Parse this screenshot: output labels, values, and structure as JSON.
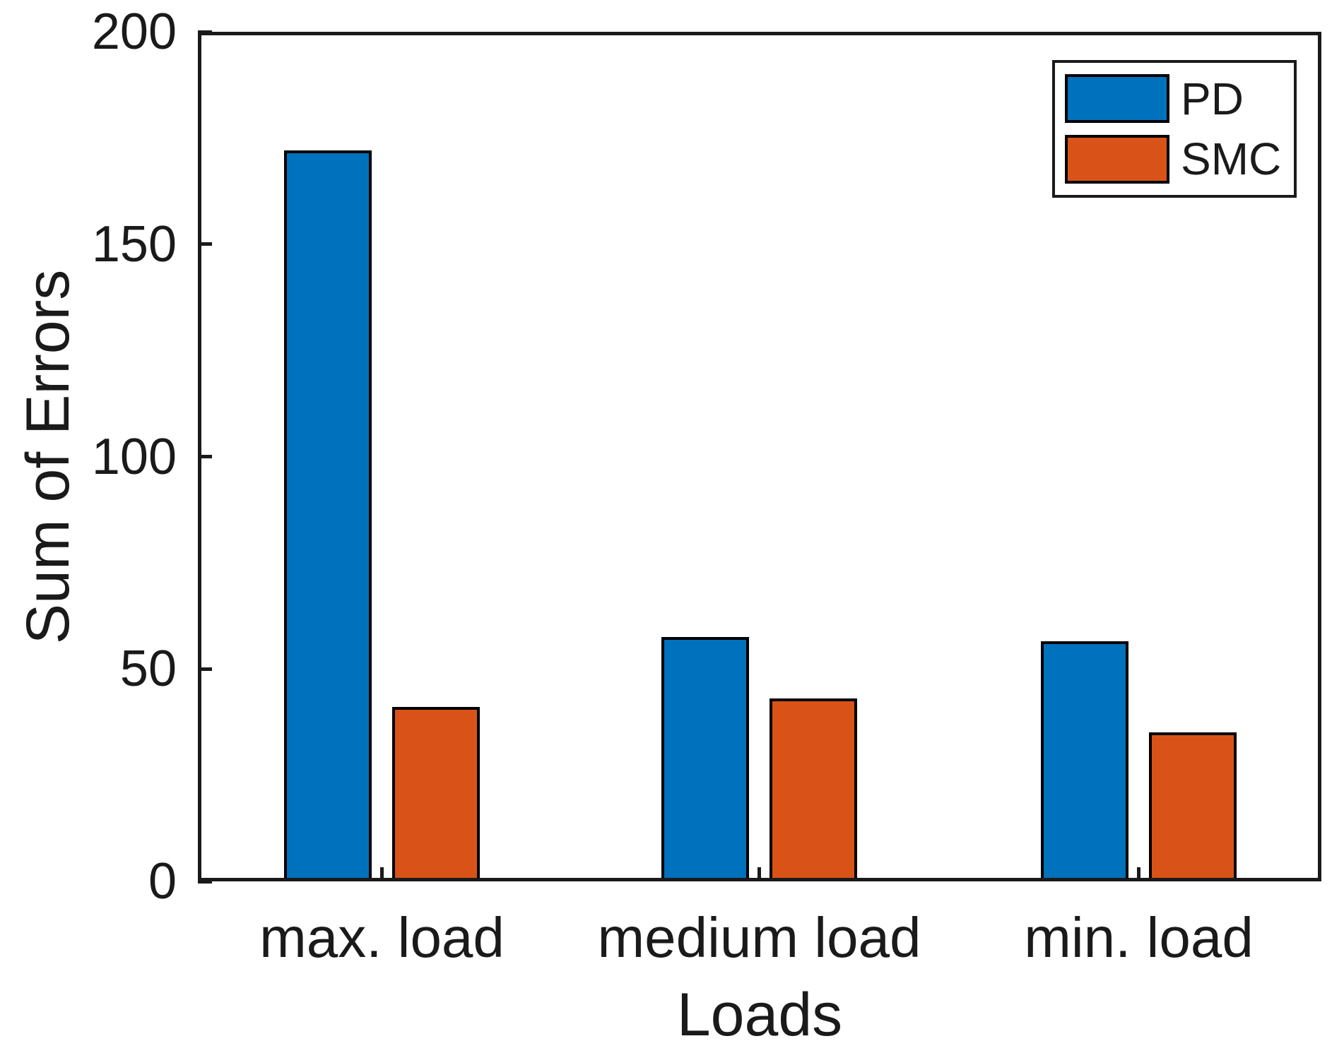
{
  "chart_data": {
    "type": "bar",
    "title": "",
    "categories": [
      "max. load",
      "medium load",
      "min. load"
    ],
    "series": [
      {
        "name": "PD",
        "color": "#0072BD",
        "values": [
          172,
          57.5,
          56.5
        ]
      },
      {
        "name": "SMC",
        "color": "#D95319",
        "values": [
          41,
          43,
          35
        ]
      }
    ],
    "xlabel": "Loads",
    "ylabel": "Sum of Errors",
    "ylim": [
      0,
      200
    ],
    "yticks": [
      0,
      50,
      100,
      150,
      200
    ],
    "grid": false,
    "legend_position": "top-right",
    "bar_edge_color": "#000000",
    "axis_color": "#1a1a1a",
    "background_color": "#ffffff"
  },
  "legend": {
    "items": [
      {
        "label": "PD",
        "color": "#0072BD"
      },
      {
        "label": "SMC",
        "color": "#D95319"
      }
    ]
  }
}
